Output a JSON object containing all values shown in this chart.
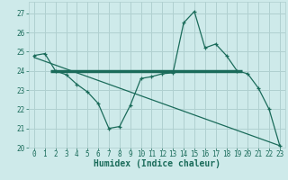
{
  "xlabel": "Humidex (Indice chaleur)",
  "bg_color": "#ceeaea",
  "grid_color": "#b0d0d0",
  "line_color": "#1a6b5a",
  "xlim": [
    -0.5,
    23.5
  ],
  "ylim": [
    20,
    27.6
  ],
  "yticks": [
    20,
    21,
    22,
    23,
    24,
    25,
    26,
    27
  ],
  "xticks": [
    0,
    1,
    2,
    3,
    4,
    5,
    6,
    7,
    8,
    9,
    10,
    11,
    12,
    13,
    14,
    15,
    16,
    17,
    18,
    19,
    20,
    21,
    22,
    23
  ],
  "main_line_x": [
    0,
    1,
    2,
    3,
    4,
    5,
    6,
    7,
    8,
    9,
    10,
    11,
    12,
    13,
    14,
    15,
    16,
    17,
    18,
    19,
    20,
    21,
    22,
    23
  ],
  "main_line_y": [
    24.8,
    24.9,
    24.0,
    23.8,
    23.3,
    22.9,
    22.3,
    21.0,
    21.1,
    22.2,
    23.6,
    23.7,
    23.85,
    23.9,
    26.5,
    27.1,
    25.2,
    25.4,
    24.8,
    24.0,
    23.85,
    23.1,
    22.0,
    20.1
  ],
  "horiz_line_y": 24.0,
  "horiz_line_x_start": 1.5,
  "horiz_line_x_end": 19.5,
  "diag_line_x": [
    0,
    23
  ],
  "diag_line_y": [
    24.7,
    20.1
  ],
  "font_size_label": 6.5,
  "font_size_tick": 5.5,
  "font_size_xlabel": 7
}
